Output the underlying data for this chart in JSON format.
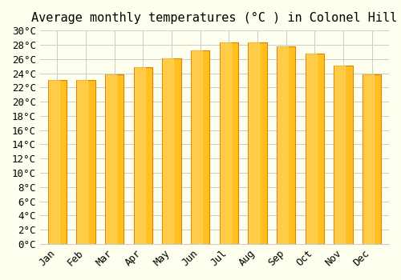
{
  "title": "Average monthly temperatures (°C ) in Colonel Hill",
  "months": [
    "Jan",
    "Feb",
    "Mar",
    "Apr",
    "May",
    "Jun",
    "Jul",
    "Aug",
    "Sep",
    "Oct",
    "Nov",
    "Dec"
  ],
  "temperatures": [
    23.0,
    23.1,
    23.8,
    24.8,
    26.1,
    27.2,
    28.3,
    28.3,
    27.8,
    26.8,
    25.1,
    23.8
  ],
  "bar_color_main": "#FFC020",
  "bar_color_edge": "#E08000",
  "ylim": [
    0,
    30
  ],
  "ytick_step": 2,
  "background_color": "#FFFFF0",
  "grid_color": "#CCCCCC",
  "title_fontsize": 11,
  "tick_fontsize": 9,
  "font_family": "monospace"
}
